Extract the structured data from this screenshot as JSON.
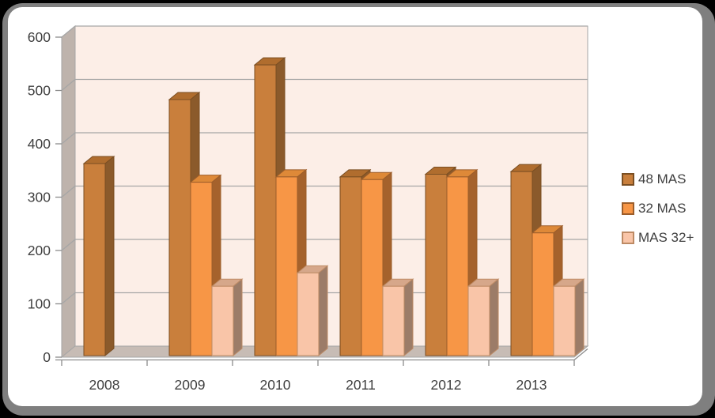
{
  "chart_data": {
    "type": "bar",
    "style": "3d-clustered-column",
    "title": "",
    "xlabel": "",
    "ylabel": "",
    "categories": [
      "2008",
      "2009",
      "2010",
      "2011",
      "2012",
      "2013"
    ],
    "series": [
      {
        "name": "48 MAS",
        "values": [
          360,
          480,
          545,
          335,
          340,
          345
        ]
      },
      {
        "name": "32 MAS",
        "values": [
          null,
          325,
          335,
          330,
          335,
          230
        ]
      },
      {
        "name": "MAS 32+",
        "values": [
          null,
          130,
          155,
          130,
          130,
          130
        ]
      }
    ],
    "ylim": [
      0,
      600
    ],
    "ytick_step": 100,
    "ytick_labels": [
      "0",
      "100",
      "200",
      "300",
      "400",
      "500",
      "600"
    ],
    "grid": true,
    "legend_position": "right",
    "colors": {
      "series": [
        {
          "front": "#C97F3C",
          "top": "#B06D2E",
          "side": "#8B5A2B",
          "stroke": "#7A4E22"
        },
        {
          "front": "#F79646",
          "top": "#DE8938",
          "side": "#A5622C",
          "stroke": "#9C5D2A"
        },
        {
          "front": "#F9C5A8",
          "top": "#D6A78A",
          "side": "#9C7C68",
          "stroke": "#BD8A64"
        }
      ],
      "plot_back_wall": "#FCEEE7",
      "side_wall": "#BEB3AC",
      "floor": "#C7BCB5",
      "gridline": "#A6A6A6",
      "axis": "#8C8C8C",
      "text": "#404040",
      "card_background": "#FFFFFF",
      "frame_border": "#7F7F7F",
      "page_background": "#000000"
    }
  }
}
